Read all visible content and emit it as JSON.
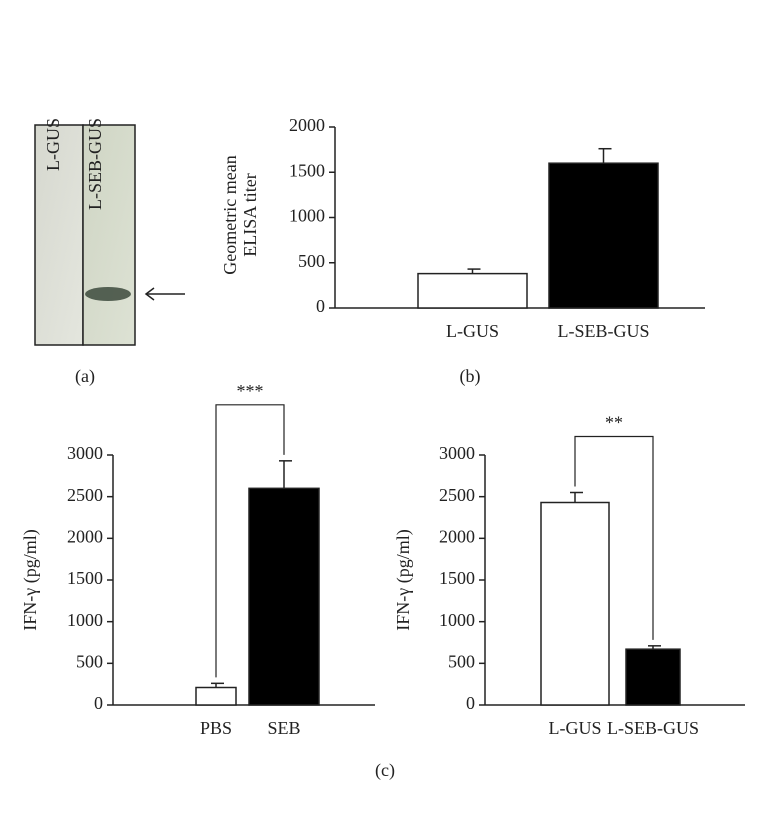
{
  "chart_data": [
    {
      "type": "blot",
      "lanes": [
        "L-GUS",
        "L-SEB-GUS"
      ],
      "caption": "(a)"
    },
    {
      "type": "bar",
      "caption": "(b)",
      "ylabel": [
        "Geometric mean",
        "ELISA titer"
      ],
      "categories": [
        "L-GUS",
        "L-SEB-GUS"
      ],
      "values": [
        380,
        1600
      ],
      "errors": [
        50,
        160
      ],
      "colors": [
        "#ffffff",
        "#000000"
      ],
      "ylim": [
        0,
        2000
      ],
      "yticks": [
        0,
        500,
        1000,
        1500,
        2000
      ]
    },
    {
      "type": "bar",
      "ylabel": [
        "IFN-γ (pg/ml)"
      ],
      "categories": [
        "PBS",
        "SEB"
      ],
      "values": [
        210,
        2600
      ],
      "errors": [
        50,
        330
      ],
      "colors": [
        "#ffffff",
        "#000000"
      ],
      "ylim": [
        0,
        3000
      ],
      "yticks": [
        0,
        500,
        1000,
        1500,
        2000,
        2500,
        3000
      ],
      "significance": "***"
    },
    {
      "type": "bar",
      "caption": "(c)",
      "ylabel": [
        "IFN-γ (pg/ml)"
      ],
      "categories": [
        "L-GUS",
        "L-SEB-GUS"
      ],
      "values": [
        2430,
        670
      ],
      "errors": [
        120,
        40
      ],
      "colors": [
        "#ffffff",
        "#000000"
      ],
      "ylim": [
        0,
        3000
      ],
      "yticks": [
        0,
        500,
        1000,
        1500,
        2000,
        2500,
        3000
      ],
      "significance": "**"
    }
  ]
}
